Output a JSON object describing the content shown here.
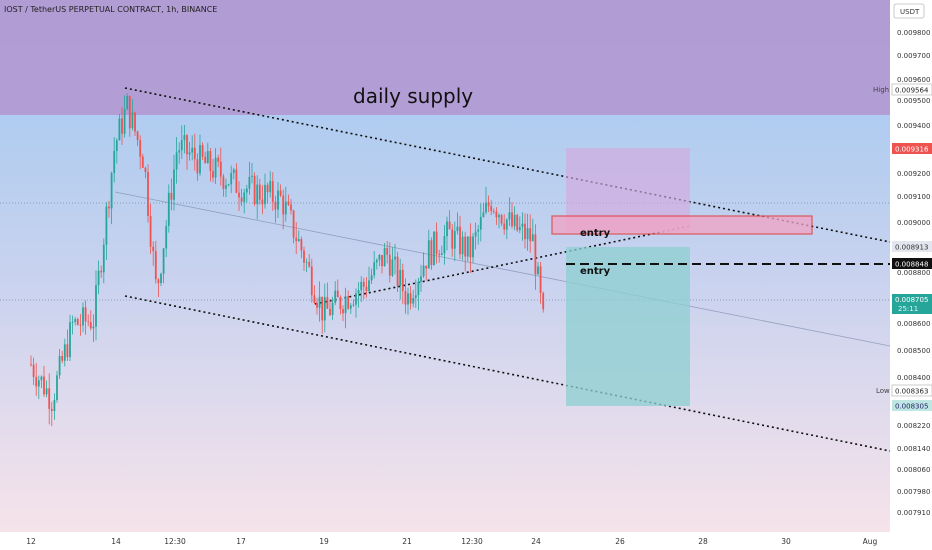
{
  "header": {
    "title": "IOST / TetherUS PERPETUAL CONTRACT, 1h, BINANCE",
    "currency": "USDT"
  },
  "zones": {
    "supply_label": "daily supply",
    "entry_label_1": "entry",
    "entry_label_2": "entry"
  },
  "price_axis": {
    "ticks": [
      "0.009800",
      "0.009700",
      "0.009600",
      "0.009500",
      "0.009400",
      "0.009300",
      "0.009200",
      "0.009100",
      "0.009000",
      "0.008800",
      "0.008600",
      "0.008500",
      "0.008400",
      "0.008220",
      "0.008140",
      "0.008060",
      "0.007980",
      "0.007910"
    ],
    "high": {
      "label": "High",
      "value": "0.009564"
    },
    "low": {
      "label": "Low",
      "value": "0.008363"
    },
    "marker_red": {
      "value": "0.009316"
    },
    "marker_gray": {
      "value": "0.008913"
    },
    "marker_black": {
      "value": "0.008848"
    },
    "marker_green": {
      "value": "0.008705",
      "countdown": "25:11"
    },
    "marker_teal": {
      "value": "0.008305"
    }
  },
  "time_axis": {
    "ticks": [
      "12",
      "14",
      "12:30",
      "17",
      "19",
      "21",
      "12:30",
      "24",
      "26",
      "28",
      "30",
      "Aug"
    ]
  },
  "colors": {
    "up": "#26a69a",
    "down": "#ef5350",
    "supply_zone": "#b39ddb",
    "entry_box": "#f06292",
    "profit_zone": "#80cbc4",
    "loss_zone": "#ce93d8"
  },
  "chart_data": {
    "type": "candlestick",
    "symbol": "IOST / TetherUS PERPETUAL CONTRACT",
    "timeframe": "1h",
    "exchange": "BINANCE",
    "close_path": [
      {
        "t": "12",
        "price": 0.00853
      },
      {
        "t": "12.5",
        "price": 0.0084
      },
      {
        "t": "13",
        "price": 0.00868
      },
      {
        "t": "13.5",
        "price": 0.0087
      },
      {
        "t": "14",
        "price": 0.00935
      },
      {
        "t": "14.3",
        "price": 0.0095
      },
      {
        "t": "14.7",
        "price": 0.0093
      },
      {
        "t": "15",
        "price": 0.0088
      },
      {
        "t": "15.5",
        "price": 0.00935
      },
      {
        "t": "16",
        "price": 0.0093
      },
      {
        "t": "17",
        "price": 0.0092
      },
      {
        "t": "18",
        "price": 0.00915
      },
      {
        "t": "18.5",
        "price": 0.00895
      },
      {
        "t": "19",
        "price": 0.00872
      },
      {
        "t": "19.5",
        "price": 0.00878
      },
      {
        "t": "20",
        "price": 0.00883
      },
      {
        "t": "20.5",
        "price": 0.00895
      },
      {
        "t": "21",
        "price": 0.00878
      },
      {
        "t": "21.5",
        "price": 0.00895
      },
      {
        "t": "22",
        "price": 0.00902
      },
      {
        "t": "22.5",
        "price": 0.00895
      },
      {
        "t": "23",
        "price": 0.00915
      },
      {
        "t": "23.5",
        "price": 0.00905
      },
      {
        "t": "24",
        "price": 0.009
      },
      {
        "t": "24.3",
        "price": 0.00863
      }
    ],
    "ylim": [
      0.0079,
      0.0099
    ],
    "grid": true,
    "annotations": [
      "daily supply",
      "entry",
      "entry"
    ]
  }
}
